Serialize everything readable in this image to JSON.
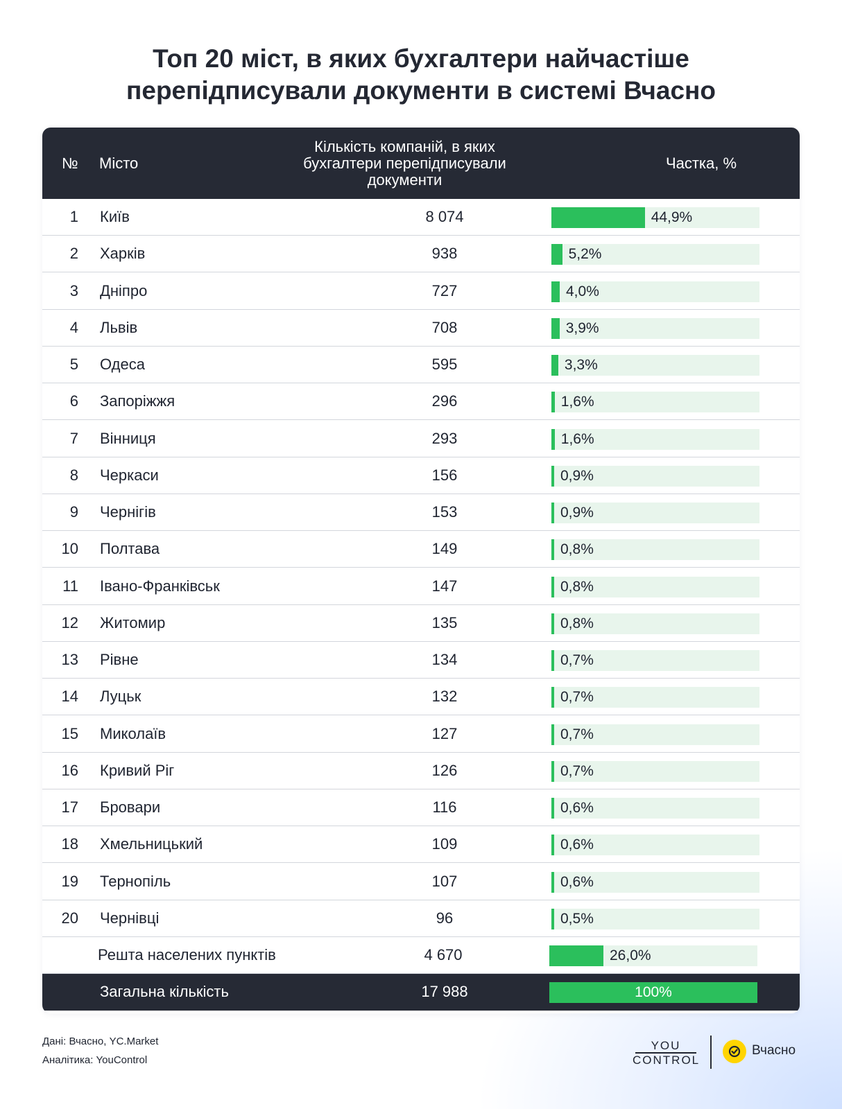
{
  "title": {
    "line1": "Топ 20 міст, в яких бухгалтери найчастіше",
    "line2": "перепідписували документи в системі Вчасно"
  },
  "table": {
    "headers": {
      "num": "№",
      "city": "Місто",
      "count": "Кількість компаній, в яких бухгалтери перепідписували документи",
      "share": "Частка, %"
    }
  },
  "chart_data": {
    "type": "table",
    "title": "Топ 20 міст, в яких бухгалтери найчастіше перепідписували документи в системі Вчасно",
    "columns": [
      "№",
      "Місто",
      "Кількість компаній, в яких бухгалтери перепідписували документи",
      "Частка, %"
    ],
    "rows": [
      {
        "num": "1",
        "city": "Київ",
        "count": "8 074",
        "share": 44.9,
        "share_label": "44,9%"
      },
      {
        "num": "2",
        "city": "Харків",
        "count": "938",
        "share": 5.2,
        "share_label": "5,2%"
      },
      {
        "num": "3",
        "city": "Дніпро",
        "count": "727",
        "share": 4.0,
        "share_label": "4,0%"
      },
      {
        "num": "4",
        "city": "Львів",
        "count": "708",
        "share": 3.9,
        "share_label": "3,9%"
      },
      {
        "num": "5",
        "city": "Одеса",
        "count": "595",
        "share": 3.3,
        "share_label": "3,3%"
      },
      {
        "num": "6",
        "city": "Запоріжжя",
        "count": "296",
        "share": 1.6,
        "share_label": "1,6%"
      },
      {
        "num": "7",
        "city": "Вінниця",
        "count": "293",
        "share": 1.6,
        "share_label": "1,6%"
      },
      {
        "num": "8",
        "city": "Черкаси",
        "count": "156",
        "share": 0.9,
        "share_label": "0,9%"
      },
      {
        "num": "9",
        "city": "Чернігів",
        "count": "153",
        "share": 0.9,
        "share_label": "0,9%"
      },
      {
        "num": "10",
        "city": "Полтава",
        "count": "149",
        "share": 0.8,
        "share_label": "0,8%"
      },
      {
        "num": "11",
        "city": "Івано-Франківськ",
        "count": "147",
        "share": 0.8,
        "share_label": "0,8%"
      },
      {
        "num": "12",
        "city": "Житомир",
        "count": "135",
        "share": 0.8,
        "share_label": "0,8%"
      },
      {
        "num": "13",
        "city": "Рівне",
        "count": "134",
        "share": 0.7,
        "share_label": "0,7%"
      },
      {
        "num": "14",
        "city": "Луцьк",
        "count": "132",
        "share": 0.7,
        "share_label": "0,7%"
      },
      {
        "num": "15",
        "city": "Миколаїв",
        "count": "127",
        "share": 0.7,
        "share_label": "0,7%"
      },
      {
        "num": "16",
        "city": "Кривий Ріг",
        "count": "126",
        "share": 0.7,
        "share_label": "0,7%"
      },
      {
        "num": "17",
        "city": "Бровари",
        "count": "116",
        "share": 0.6,
        "share_label": "0,6%"
      },
      {
        "num": "18",
        "city": "Хмельницький",
        "count": "109",
        "share": 0.6,
        "share_label": "0,6%"
      },
      {
        "num": "19",
        "city": "Тернопіль",
        "count": "107",
        "share": 0.6,
        "share_label": "0,6%"
      },
      {
        "num": "20",
        "city": "Чернівці",
        "count": "96",
        "share": 0.5,
        "share_label": "0,5%"
      }
    ],
    "rest": {
      "city": "Решта населених пунктів",
      "count": "4 670",
      "share": 26.0,
      "share_label": "26,0%"
    },
    "total": {
      "city": "Загальна кількість",
      "count": "17 988",
      "share": 100,
      "share_label": "100%"
    },
    "bar_scale_max": 100,
    "bar_color": "#2bbf5c",
    "bar_track_color": "#e8f5ec"
  },
  "footer": {
    "source": "Дані: Вчасно, YC.Market",
    "analytics": "Аналітика: YouControl",
    "logo_youcontrol_line1": "YOU",
    "logo_youcontrol_line2": "CONTROL",
    "logo_vchasno": "Вчасно",
    "logo_vchasno_icon": "vchasno-check-icon"
  }
}
